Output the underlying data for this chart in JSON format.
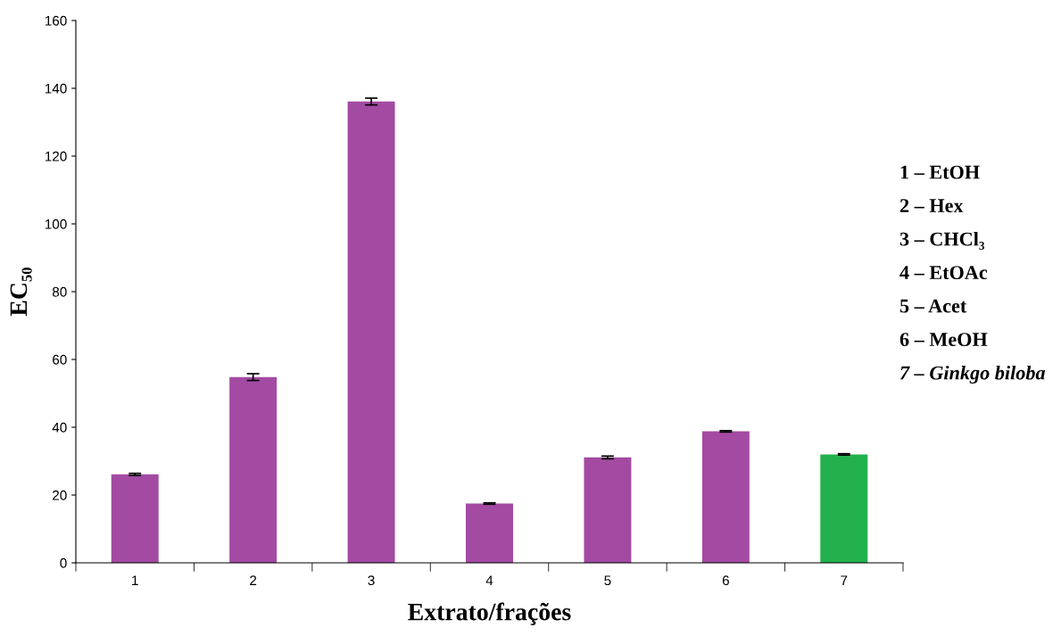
{
  "chart_data": {
    "type": "bar",
    "xlabel": "Extrato/frações",
    "ylabel": "EC₅₀",
    "categories": [
      "1",
      "2",
      "3",
      "4",
      "5",
      "6",
      "7"
    ],
    "values": [
      26.1,
      54.8,
      136.1,
      17.5,
      31.1,
      38.8,
      32.0
    ],
    "errors": [
      0.3,
      1.0,
      1.0,
      0.2,
      0.4,
      0.2,
      0.2
    ],
    "colors": [
      "#a34aa3",
      "#a34aa3",
      "#a34aa3",
      "#a34aa3",
      "#a34aa3",
      "#a34aa3",
      "#22b14c"
    ],
    "ylim": [
      0,
      160
    ],
    "yticks": [
      0,
      20,
      40,
      60,
      80,
      100,
      120,
      140,
      160
    ],
    "grid": false,
    "legend": false,
    "annotations": [
      "1 – EtOH",
      "2 – Hex",
      "3 – CHCl₃",
      "4 – EtOAc",
      "5 – Acet",
      "6 – MeOH",
      "7 – Ginkgo biloba"
    ]
  }
}
